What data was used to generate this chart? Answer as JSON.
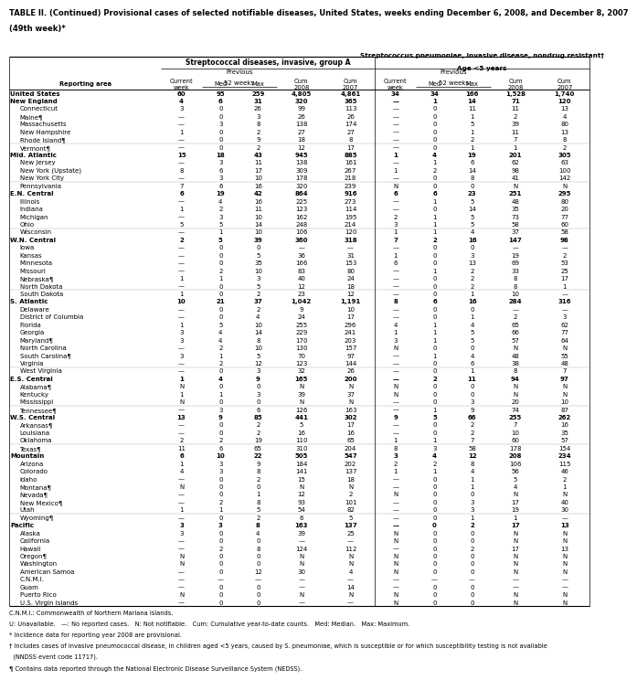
{
  "title_line1": "TABLE II. (Continued) Provisional cases of selected notifiable diseases, United States, weeks ending December 6, 2008, and December 8, 2007",
  "title_line2": "(49th week)*",
  "col_group1": "Streptococcal diseases, invasive, group A",
  "col_group2_line1": "Streptococcus pneumoniae, invasive disease, nondrug resistant†",
  "col_group2_line2": "Age <5 years",
  "rows": [
    [
      "United States",
      "60",
      "95",
      "259",
      "4,805",
      "4,861",
      "34",
      "34",
      "166",
      "1,528",
      "1,740"
    ],
    [
      "New England",
      "4",
      "6",
      "31",
      "320",
      "365",
      "—",
      "1",
      "14",
      "71",
      "120"
    ],
    [
      "Connecticut",
      "3",
      "0",
      "26",
      "99",
      "113",
      "—",
      "0",
      "11",
      "11",
      "13"
    ],
    [
      "Maine¶",
      "—",
      "0",
      "3",
      "26",
      "26",
      "—",
      "0",
      "1",
      "2",
      "4"
    ],
    [
      "Massachusetts",
      "—",
      "3",
      "8",
      "138",
      "174",
      "—",
      "0",
      "5",
      "39",
      "80"
    ],
    [
      "New Hampshire",
      "1",
      "0",
      "2",
      "27",
      "27",
      "—",
      "0",
      "1",
      "11",
      "13"
    ],
    [
      "Rhode Island¶",
      "—",
      "0",
      "9",
      "18",
      "8",
      "—",
      "0",
      "2",
      "7",
      "8"
    ],
    [
      "Vermont¶",
      "—",
      "0",
      "2",
      "12",
      "17",
      "—",
      "0",
      "1",
      "1",
      "2"
    ],
    [
      "Mid. Atlantic",
      "15",
      "18",
      "43",
      "945",
      "885",
      "1",
      "4",
      "19",
      "201",
      "305"
    ],
    [
      "New Jersey",
      "—",
      "3",
      "11",
      "138",
      "161",
      "—",
      "1",
      "6",
      "62",
      "63"
    ],
    [
      "New York (Upstate)",
      "8",
      "6",
      "17",
      "309",
      "267",
      "1",
      "2",
      "14",
      "98",
      "100"
    ],
    [
      "New York City",
      "—",
      "3",
      "10",
      "178",
      "218",
      "—",
      "0",
      "8",
      "41",
      "142"
    ],
    [
      "Pennsylvania",
      "7",
      "6",
      "16",
      "320",
      "239",
      "N",
      "0",
      "0",
      "N",
      "N"
    ],
    [
      "E.N. Central",
      "6",
      "19",
      "42",
      "864",
      "916",
      "6",
      "6",
      "23",
      "251",
      "295"
    ],
    [
      "Illinois",
      "—",
      "4",
      "16",
      "225",
      "273",
      "—",
      "1",
      "5",
      "48",
      "80"
    ],
    [
      "Indiana",
      "1",
      "2",
      "11",
      "123",
      "114",
      "—",
      "0",
      "14",
      "35",
      "20"
    ],
    [
      "Michigan",
      "—",
      "3",
      "10",
      "162",
      "195",
      "2",
      "1",
      "5",
      "73",
      "77"
    ],
    [
      "Ohio",
      "5",
      "5",
      "14",
      "248",
      "214",
      "3",
      "1",
      "5",
      "58",
      "60"
    ],
    [
      "Wisconsin",
      "—",
      "1",
      "10",
      "106",
      "120",
      "1",
      "1",
      "4",
      "37",
      "58"
    ],
    [
      "W.N. Central",
      "2",
      "5",
      "39",
      "360",
      "318",
      "7",
      "2",
      "16",
      "147",
      "98"
    ],
    [
      "Iowa",
      "—",
      "0",
      "0",
      "—",
      "—",
      "—",
      "0",
      "0",
      "—",
      "—"
    ],
    [
      "Kansas",
      "—",
      "0",
      "5",
      "36",
      "31",
      "1",
      "0",
      "3",
      "19",
      "2"
    ],
    [
      "Minnesota",
      "—",
      "0",
      "35",
      "166",
      "153",
      "6",
      "0",
      "13",
      "69",
      "53"
    ],
    [
      "Missouri",
      "—",
      "2",
      "10",
      "83",
      "80",
      "—",
      "1",
      "2",
      "33",
      "25"
    ],
    [
      "Nebraska¶",
      "1",
      "1",
      "3",
      "40",
      "24",
      "—",
      "0",
      "2",
      "8",
      "17"
    ],
    [
      "North Dakota",
      "—",
      "0",
      "5",
      "12",
      "18",
      "—",
      "0",
      "2",
      "8",
      "1"
    ],
    [
      "South Dakota",
      "1",
      "0",
      "2",
      "23",
      "12",
      "—",
      "0",
      "1",
      "10",
      "—"
    ],
    [
      "S. Atlantic",
      "10",
      "21",
      "37",
      "1,042",
      "1,191",
      "8",
      "6",
      "16",
      "284",
      "316"
    ],
    [
      "Delaware",
      "—",
      "0",
      "2",
      "9",
      "10",
      "—",
      "0",
      "0",
      "—",
      "—"
    ],
    [
      "District of Columbia",
      "—",
      "0",
      "4",
      "24",
      "17",
      "—",
      "0",
      "1",
      "2",
      "3"
    ],
    [
      "Florida",
      "1",
      "5",
      "10",
      "255",
      "296",
      "4",
      "1",
      "4",
      "65",
      "62"
    ],
    [
      "Georgia",
      "3",
      "4",
      "14",
      "229",
      "241",
      "1",
      "1",
      "5",
      "66",
      "77"
    ],
    [
      "Maryland¶",
      "3",
      "4",
      "8",
      "170",
      "203",
      "3",
      "1",
      "5",
      "57",
      "64"
    ],
    [
      "North Carolina",
      "—",
      "2",
      "10",
      "130",
      "157",
      "N",
      "0",
      "0",
      "N",
      "N"
    ],
    [
      "South Carolina¶",
      "3",
      "1",
      "5",
      "70",
      "97",
      "—",
      "1",
      "4",
      "48",
      "55"
    ],
    [
      "Virginia",
      "—",
      "2",
      "12",
      "123",
      "144",
      "—",
      "0",
      "6",
      "38",
      "48"
    ],
    [
      "West Virginia",
      "—",
      "0",
      "3",
      "32",
      "26",
      "—",
      "0",
      "1",
      "8",
      "7"
    ],
    [
      "E.S. Central",
      "1",
      "4",
      "9",
      "165",
      "200",
      "—",
      "2",
      "11",
      "94",
      "97"
    ],
    [
      "Alabama¶",
      "N",
      "0",
      "0",
      "N",
      "N",
      "N",
      "0",
      "0",
      "N",
      "N"
    ],
    [
      "Kentucky",
      "1",
      "1",
      "3",
      "39",
      "37",
      "N",
      "0",
      "0",
      "N",
      "N"
    ],
    [
      "Mississippi",
      "N",
      "0",
      "0",
      "N",
      "N",
      "—",
      "0",
      "3",
      "20",
      "10"
    ],
    [
      "Tennessee¶",
      "—",
      "3",
      "6",
      "126",
      "163",
      "—",
      "1",
      "9",
      "74",
      "87"
    ],
    [
      "W.S. Central",
      "13",
      "9",
      "85",
      "441",
      "302",
      "9",
      "5",
      "66",
      "255",
      "262"
    ],
    [
      "Arkansas¶",
      "—",
      "0",
      "2",
      "5",
      "17",
      "—",
      "0",
      "2",
      "7",
      "16"
    ],
    [
      "Louisiana",
      "—",
      "0",
      "2",
      "16",
      "16",
      "—",
      "0",
      "2",
      "10",
      "35"
    ],
    [
      "Oklahoma",
      "2",
      "2",
      "19",
      "110",
      "65",
      "1",
      "1",
      "7",
      "60",
      "57"
    ],
    [
      "Texas¶",
      "11",
      "6",
      "65",
      "310",
      "204",
      "8",
      "3",
      "58",
      "178",
      "154"
    ],
    [
      "Mountain",
      "6",
      "10",
      "22",
      "505",
      "547",
      "3",
      "4",
      "12",
      "208",
      "234"
    ],
    [
      "Arizona",
      "1",
      "3",
      "9",
      "184",
      "202",
      "2",
      "2",
      "8",
      "106",
      "115"
    ],
    [
      "Colorado",
      "4",
      "3",
      "8",
      "141",
      "137",
      "1",
      "1",
      "4",
      "56",
      "46"
    ],
    [
      "Idaho",
      "—",
      "0",
      "2",
      "15",
      "18",
      "—",
      "0",
      "1",
      "5",
      "2"
    ],
    [
      "Montana¶",
      "N",
      "0",
      "0",
      "N",
      "N",
      "—",
      "0",
      "1",
      "4",
      "1"
    ],
    [
      "Nevada¶",
      "—",
      "0",
      "1",
      "12",
      "2",
      "N",
      "0",
      "0",
      "N",
      "N"
    ],
    [
      "New Mexico¶",
      "—",
      "2",
      "8",
      "93",
      "101",
      "—",
      "0",
      "3",
      "17",
      "40"
    ],
    [
      "Utah",
      "1",
      "1",
      "5",
      "54",
      "82",
      "—",
      "0",
      "3",
      "19",
      "30"
    ],
    [
      "Wyoming¶",
      "—",
      "0",
      "2",
      "6",
      "5",
      "—",
      "0",
      "1",
      "1",
      "—"
    ],
    [
      "Pacific",
      "3",
      "3",
      "8",
      "163",
      "137",
      "—",
      "0",
      "2",
      "17",
      "13"
    ],
    [
      "Alaska",
      "3",
      "0",
      "4",
      "39",
      "25",
      "N",
      "0",
      "0",
      "N",
      "N"
    ],
    [
      "California",
      "—",
      "0",
      "0",
      "—",
      "—",
      "N",
      "0",
      "0",
      "N",
      "N"
    ],
    [
      "Hawaii",
      "—",
      "2",
      "8",
      "124",
      "112",
      "—",
      "0",
      "2",
      "17",
      "13"
    ],
    [
      "Oregon¶",
      "N",
      "0",
      "0",
      "N",
      "N",
      "N",
      "0",
      "0",
      "N",
      "N"
    ],
    [
      "Washington",
      "N",
      "0",
      "0",
      "N",
      "N",
      "N",
      "0",
      "0",
      "N",
      "N"
    ],
    [
      "American Samoa",
      "—",
      "0",
      "12",
      "30",
      "4",
      "N",
      "0",
      "0",
      "N",
      "N"
    ],
    [
      "C.N.M.I.",
      "—",
      "—",
      "—",
      "—",
      "—",
      "—",
      "—",
      "—",
      "—",
      "—"
    ],
    [
      "Guam",
      "—",
      "0",
      "0",
      "—",
      "14",
      "—",
      "0",
      "0",
      "—",
      "—"
    ],
    [
      "Puerto Rico",
      "N",
      "0",
      "0",
      "N",
      "N",
      "N",
      "0",
      "0",
      "N",
      "N"
    ],
    [
      "U.S. Virgin Islands",
      "—",
      "0",
      "0",
      "—",
      "—",
      "N",
      "0",
      "0",
      "N",
      "N"
    ]
  ],
  "bold_rows": [
    0,
    1,
    8,
    13,
    19,
    27,
    37,
    42,
    47,
    56
  ],
  "footnotes": [
    "C.N.M.I.: Commonwealth of Northern Mariana Islands.",
    "U: Unavailable.   —: No reported cases.   N: Not notifiable.   Cum: Cumulative year-to-date counts.   Med: Median.   Max: Maximum.",
    "* Incidence data for reporting year 2008 are provisional.",
    "† Includes cases of invasive pneumococcal disease, in children aged <5 years, caused by S. pneumoniae, which is susceptible or for which susceptibility testing is not available",
    "  (NNDSS event code 11717).",
    "¶ Contains data reported through the National Electronic Disease Surveillance System (NEDSS)."
  ]
}
